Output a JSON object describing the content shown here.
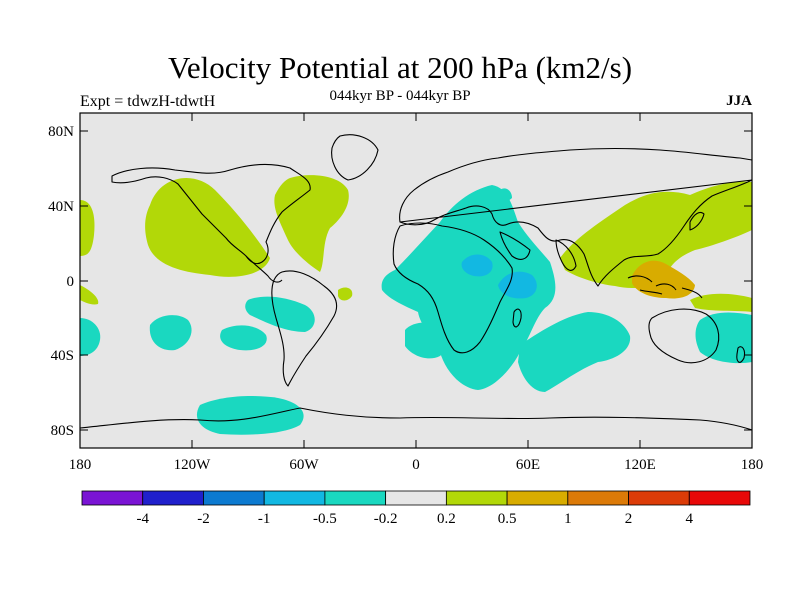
{
  "title": "Velocity Potential at 200 hPa (km2/s)",
  "subtitle": "044kyr BP - 044kyr BP",
  "left_label": "Expt = tdwzH-tdwtH",
  "right_label": "JJA",
  "lat_labels": [
    "80N",
    "40N",
    "0",
    "40S",
    "80S"
  ],
  "lon_labels": [
    "180",
    "120W",
    "60W",
    "0",
    "60E",
    "120E",
    "180"
  ],
  "colorbar": {
    "labels": [
      "-4",
      "-2",
      "-1",
      "-0.5",
      "-0.2",
      "0.2",
      "0.5",
      "1",
      "2",
      "4"
    ],
    "colors": [
      "#7a14d4",
      "#2020cc",
      "#0c7ad0",
      "#12b8e2",
      "#1ad8c0",
      "#e6e6e6",
      "#b2d808",
      "#d8ac00",
      "#dc7a08",
      "#dc3c08",
      "#e80808"
    ]
  }
}
